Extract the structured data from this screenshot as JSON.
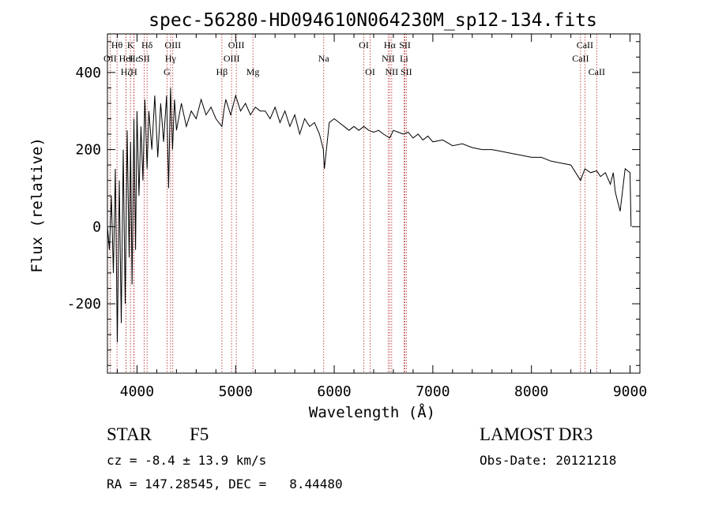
{
  "chart_data": {
    "type": "line",
    "title": "spec-56280-HD094610N064230M_sp12-134.fits",
    "xlabel": "Wavelength (Å)",
    "ylabel": "Flux (relative)",
    "xlim": [
      3700,
      9100
    ],
    "ylim": [
      -380,
      500
    ],
    "xticks": [
      4000,
      5000,
      6000,
      7000,
      8000,
      9000
    ],
    "yticks": [
      -200,
      0,
      200,
      400
    ],
    "grid": false,
    "series": [
      {
        "name": "flux",
        "x": [
          3700,
          3720,
          3740,
          3760,
          3780,
          3800,
          3820,
          3840,
          3860,
          3880,
          3900,
          3920,
          3935,
          3950,
          3968,
          3985,
          4000,
          4020,
          4040,
          4060,
          4080,
          4102,
          4120,
          4150,
          4180,
          4210,
          4240,
          4270,
          4300,
          4320,
          4340,
          4360,
          4380,
          4400,
          4450,
          4500,
          4550,
          4600,
          4650,
          4700,
          4750,
          4800,
          4861,
          4880,
          4900,
          4950,
          5000,
          5050,
          5100,
          5150,
          5200,
          5250,
          5300,
          5350,
          5400,
          5450,
          5500,
          5550,
          5600,
          5650,
          5700,
          5750,
          5800,
          5850,
          5890,
          5900,
          5950,
          6000,
          6050,
          6100,
          6150,
          6200,
          6250,
          6300,
          6350,
          6400,
          6450,
          6500,
          6563,
          6600,
          6650,
          6700,
          6750,
          6800,
          6850,
          6900,
          6950,
          7000,
          7100,
          7200,
          7300,
          7400,
          7500,
          7600,
          7700,
          7800,
          7900,
          8000,
          8100,
          8200,
          8300,
          8400,
          8498,
          8542,
          8600,
          8662,
          8700,
          8750,
          8800,
          8830,
          8850,
          8900,
          8950,
          9000,
          9010
        ],
        "values": [
          0,
          -60,
          80,
          -120,
          150,
          -300,
          120,
          -250,
          200,
          -200,
          250,
          -80,
          220,
          -150,
          280,
          -60,
          300,
          80,
          260,
          120,
          330,
          150,
          300,
          200,
          340,
          180,
          320,
          220,
          340,
          100,
          360,
          200,
          330,
          250,
          320,
          260,
          300,
          280,
          330,
          290,
          310,
          280,
          260,
          300,
          330,
          290,
          340,
          300,
          320,
          290,
          310,
          300,
          300,
          280,
          310,
          270,
          300,
          260,
          290,
          240,
          280,
          260,
          270,
          240,
          200,
          150,
          270,
          280,
          270,
          260,
          250,
          260,
          250,
          260,
          250,
          245,
          250,
          240,
          230,
          250,
          245,
          240,
          245,
          230,
          240,
          225,
          235,
          220,
          225,
          210,
          215,
          205,
          200,
          200,
          195,
          190,
          185,
          180,
          180,
          170,
          165,
          160,
          120,
          150,
          140,
          145,
          130,
          140,
          110,
          140,
          90,
          40,
          150,
          140,
          0
        ]
      }
    ],
    "lines": [
      {
        "label": "Hθ",
        "x": 3797,
        "row": 0
      },
      {
        "label": "K",
        "x": 3934,
        "row": 0
      },
      {
        "label": "Hδ",
        "x": 4102,
        "row": 0
      },
      {
        "label": "OIII",
        "x": 4363,
        "row": 0
      },
      {
        "label": "OIII",
        "x": 5007,
        "row": 0
      },
      {
        "label": "OI",
        "x": 6300,
        "row": 0
      },
      {
        "label": "Hα",
        "x": 6563,
        "row": 0
      },
      {
        "label": "SII",
        "x": 6717,
        "row": 0
      },
      {
        "label": "CaII",
        "x": 8542,
        "row": 0
      },
      {
        "label": "OII",
        "x": 3727,
        "row": 1
      },
      {
        "label": "Hε",
        "x": 3970,
        "row": 1
      },
      {
        "label": "HeI",
        "x": 3889,
        "row": 1
      },
      {
        "label": "SII",
        "x": 4072,
        "row": 1
      },
      {
        "label": "Hγ",
        "x": 4340,
        "row": 1
      },
      {
        "label": "OIII",
        "x": 4959,
        "row": 1
      },
      {
        "label": "Na",
        "x": 5893,
        "row": 1
      },
      {
        "label": "NII",
        "x": 6548,
        "row": 1
      },
      {
        "label": "Li",
        "x": 6708,
        "row": 1
      },
      {
        "label": "CaII",
        "x": 8498,
        "row": 1
      },
      {
        "label": "Hζ",
        "x": 3889,
        "row": 2
      },
      {
        "label": "H",
        "x": 3968,
        "row": 2
      },
      {
        "label": "G",
        "x": 4304,
        "row": 2
      },
      {
        "label": "Hβ",
        "x": 4861,
        "row": 2
      },
      {
        "label": "Mg",
        "x": 5175,
        "row": 2
      },
      {
        "label": "OI",
        "x": 6364,
        "row": 2
      },
      {
        "label": "NII",
        "x": 6583,
        "row": 2
      },
      {
        "label": "SII",
        "x": 6731,
        "row": 2
      },
      {
        "label": "CaII",
        "x": 8662,
        "row": 2
      }
    ]
  },
  "info": {
    "object_class": "STAR",
    "subclass": "F5",
    "survey": "LAMOST DR3",
    "cz": "cz = -8.4 ± 13.9 km/s",
    "obs_date": "Obs-Date: 20121218",
    "radec": "RA = 147.28545, DEC =   8.44480"
  },
  "colors": {
    "line": "#000000",
    "marker": "#b22222",
    "axis": "#000000"
  }
}
